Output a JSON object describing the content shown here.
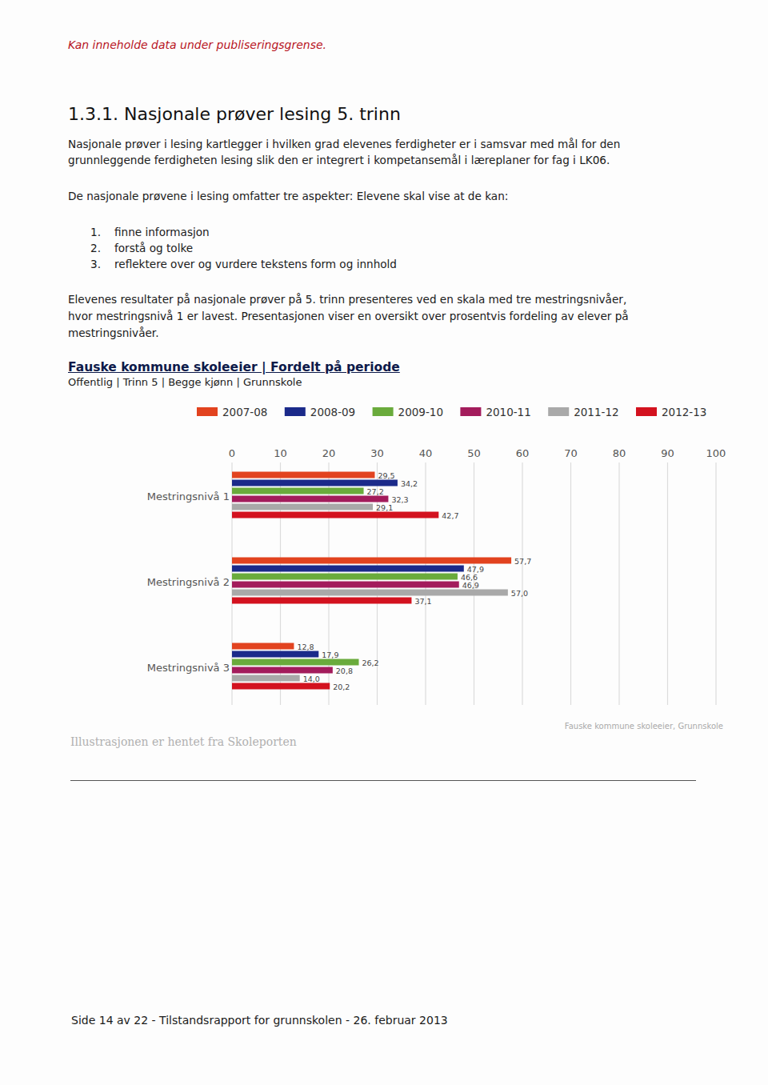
{
  "page": {
    "header_note": "Kan inneholde data under publiseringsgrense.",
    "heading": "1.3.1. Nasjonale prøver lesing 5. trinn",
    "intro": [
      "Nasjonale prøver i lesing kartlegger i hvilken grad elevenes ferdigheter er i samsvar med mål for den",
      "grunnleggende ferdigheten lesing slik den er integrert i kompetansemål i læreplaner for fag i LK06."
    ],
    "aspects_intro": "De nasjonale prøvene i lesing omfatter tre aspekter: Elevene skal vise at de kan:",
    "aspects": [
      {
        "number": "1.",
        "text": "finne informasjon"
      },
      {
        "number": "2.",
        "text": "forstå og tolke"
      },
      {
        "number": "3.",
        "text": "reflektere over og vurdere tekstens form og innhold"
      }
    ],
    "results_text": [
      "Elevenes resultater på nasjonale prøver på 5. trinn presenteres ved en skala med tre mestringsnivåer,",
      "hvor mestringsnivå 1 er lavest. Presentasjonen viser en oversikt over prosentvis fordeling av elever på",
      "mestringsnivåer."
    ],
    "caption": "Illustrasjonen er hentet fra Skoleporten",
    "footer": "Side 14 av 22 - Tilstandsrapport for grunnskolen - 26. februar 2013"
  },
  "chart_data": {
    "type": "bar",
    "orientation": "horizontal",
    "title": "Fauske kommune skoleeier | Fordelt på periode",
    "subtitle": "Offentlig | Trinn 5 | Begge kjønn | Grunnskole",
    "annotations": [
      "Fauske kommune skoleeier, Grunnskole"
    ],
    "categories": [
      "Mestringsnivå 1",
      "Mestringsnivå 2",
      "Mestringsnivå 3"
    ],
    "series": [
      {
        "name": "2007-08",
        "color": "#e2431f",
        "values": [
          29.5,
          57.7,
          12.8
        ],
        "value_labels": [
          "29,5",
          "57,7",
          "12,8"
        ]
      },
      {
        "name": "2008-09",
        "color": "#1b2a8a",
        "values": [
          34.2,
          47.9,
          17.9
        ],
        "value_labels": [
          "34,2",
          "47,9",
          "17,9"
        ]
      },
      {
        "name": "2009-10",
        "color": "#6aab3c",
        "values": [
          27.2,
          46.6,
          26.2
        ],
        "value_labels": [
          "27,2",
          "46,6",
          "26,2"
        ]
      },
      {
        "name": "2010-11",
        "color": "#a31c5c",
        "values": [
          32.3,
          46.9,
          20.8
        ],
        "value_labels": [
          "32,3",
          "46,9",
          "20,8"
        ]
      },
      {
        "name": "2011-12",
        "color": "#a9a9a9",
        "values": [
          29.1,
          57.0,
          14.0
        ],
        "value_labels": [
          "29,1",
          "57,0",
          "14,0"
        ]
      },
      {
        "name": "2012-13",
        "color": "#d3121f",
        "values": [
          42.7,
          37.1,
          20.2
        ],
        "value_labels": [
          "42,7",
          "37,1",
          "20,2"
        ]
      }
    ],
    "xlim": [
      0,
      100
    ],
    "xticks": [
      0,
      10,
      20,
      30,
      40,
      50,
      60,
      70,
      80,
      90,
      100
    ],
    "grid": true,
    "data_labels": true,
    "legend": "top"
  }
}
